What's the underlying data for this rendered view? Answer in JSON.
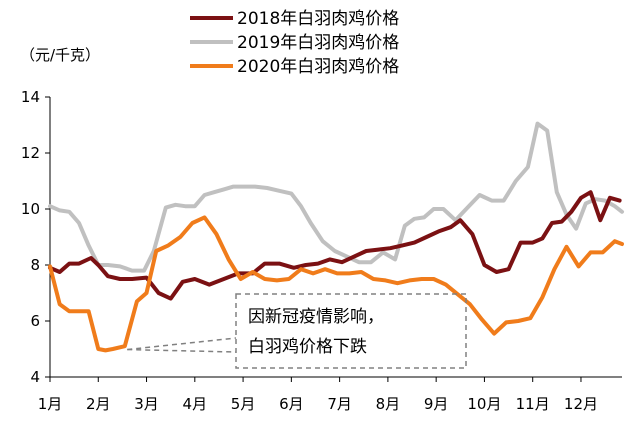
{
  "chart_data": {
    "type": "line",
    "unit": "（元/千克）",
    "categories": [
      "1月",
      "2月",
      "3月",
      "4月",
      "5月",
      "6月",
      "7月",
      "8月",
      "9月",
      "10月",
      "11月",
      "12月"
    ],
    "ylim": [
      4,
      14
    ],
    "yticks": [
      4,
      6,
      8,
      10,
      12,
      14
    ],
    "grid": false,
    "legend_position": "top",
    "series": [
      {
        "name": "2018年白羽肉鸡价格",
        "color": "#7b1113",
        "x": [
          1,
          1.2,
          1.4,
          1.6,
          1.85,
          2.0,
          2.2,
          2.45,
          2.7,
          3.0,
          3.25,
          3.5,
          3.75,
          4.0,
          4.3,
          4.6,
          4.9,
          5.2,
          5.45,
          5.75,
          6.05,
          6.3,
          6.55,
          6.8,
          7.05,
          7.3,
          7.55,
          7.8,
          8.05,
          8.3,
          8.55,
          8.8,
          9.05,
          9.3,
          9.5,
          9.75,
          10.0,
          10.25,
          10.5,
          10.75,
          11.0,
          11.2,
          11.4,
          11.6,
          11.8,
          12.0,
          12.2,
          12.4,
          12.6,
          12.8
        ],
        "values": [
          7.9,
          7.75,
          8.05,
          8.05,
          8.25,
          8.0,
          7.6,
          7.5,
          7.5,
          7.55,
          7.0,
          6.8,
          7.4,
          7.5,
          7.3,
          7.5,
          7.7,
          7.7,
          8.05,
          8.05,
          7.9,
          8.0,
          8.05,
          8.2,
          8.1,
          8.3,
          8.5,
          8.55,
          8.6,
          8.7,
          8.8,
          9.0,
          9.2,
          9.35,
          9.6,
          9.1,
          8.0,
          7.75,
          7.85,
          8.8,
          8.8,
          8.95,
          9.5,
          9.55,
          9.9,
          10.4,
          10.6,
          9.6,
          10.4,
          10.3
        ]
      },
      {
        "name": "2019年白羽肉鸡价格",
        "color": "#c0c0c0",
        "x": [
          1,
          1.2,
          1.4,
          1.6,
          1.8,
          2.0,
          2.2,
          2.45,
          2.7,
          2.95,
          3.15,
          3.4,
          3.6,
          3.8,
          4.0,
          4.2,
          4.4,
          4.6,
          4.8,
          5.0,
          5.25,
          5.5,
          5.75,
          6.0,
          6.2,
          6.4,
          6.65,
          6.9,
          7.15,
          7.4,
          7.65,
          7.9,
          8.15,
          8.35,
          8.55,
          8.75,
          8.95,
          9.15,
          9.4,
          9.65,
          9.9,
          10.15,
          10.4,
          10.65,
          10.9,
          11.1,
          11.3,
          11.5,
          11.7,
          11.9,
          12.1,
          12.3,
          12.5,
          12.7,
          12.85
        ],
        "values": [
          10.1,
          9.95,
          9.9,
          9.5,
          8.7,
          8.0,
          8.0,
          7.95,
          7.8,
          7.8,
          8.5,
          10.05,
          10.15,
          10.1,
          10.1,
          10.5,
          10.6,
          10.7,
          10.8,
          10.8,
          10.8,
          10.75,
          10.65,
          10.55,
          10.1,
          9.5,
          8.85,
          8.5,
          8.3,
          8.1,
          8.1,
          8.45,
          8.2,
          9.4,
          9.65,
          9.7,
          10.0,
          10.0,
          9.6,
          10.05,
          10.5,
          10.3,
          10.3,
          11.0,
          11.5,
          13.05,
          12.8,
          10.6,
          9.8,
          9.3,
          10.2,
          10.35,
          10.3,
          10.1,
          9.9
        ]
      },
      {
        "name": "2020年白羽肉鸡价格",
        "color": "#f07c1b",
        "x": [
          1,
          1.2,
          1.4,
          1.6,
          1.8,
          2.0,
          2.15,
          2.3,
          2.55,
          2.8,
          3.0,
          3.2,
          3.45,
          3.7,
          3.95,
          4.2,
          4.45,
          4.7,
          4.95,
          5.2,
          5.45,
          5.7,
          5.95,
          6.2,
          6.45,
          6.7,
          6.95,
          7.2,
          7.45,
          7.7,
          7.95,
          8.2,
          8.45,
          8.7,
          8.95,
          9.2,
          9.45,
          9.7,
          9.95,
          10.2,
          10.45,
          10.7,
          10.95,
          11.2,
          11.45,
          11.7,
          11.95,
          12.2,
          12.45,
          12.7,
          12.85
        ],
        "values": [
          7.95,
          6.6,
          6.35,
          6.35,
          6.35,
          5.0,
          4.95,
          5.0,
          5.1,
          6.7,
          7.0,
          8.5,
          8.7,
          9.0,
          9.5,
          9.7,
          9.1,
          8.2,
          7.5,
          7.75,
          7.5,
          7.45,
          7.5,
          7.85,
          7.7,
          7.85,
          7.7,
          7.7,
          7.75,
          7.5,
          7.45,
          7.35,
          7.45,
          7.5,
          7.5,
          7.3,
          6.95,
          6.6,
          6.05,
          5.55,
          5.95,
          6.0,
          6.1,
          6.85,
          7.85,
          8.65,
          7.95,
          8.45,
          8.45,
          8.85,
          8.75
        ]
      }
    ],
    "annotation": {
      "lines": [
        "因新冠疫情影响，",
        "白羽鸡价格下跌"
      ],
      "target_x": 2.6,
      "target_y": 4.98
    }
  }
}
